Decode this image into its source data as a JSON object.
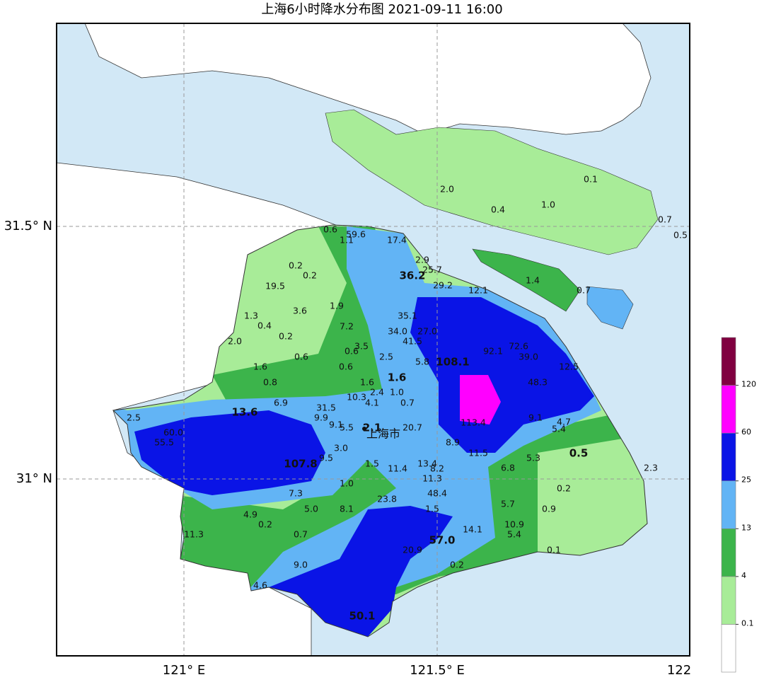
{
  "title": "上海6小时降水分布图 2021-09-11 16:00",
  "axes": {
    "y_labels": [
      "31.5° N",
      "31° N"
    ],
    "x_labels": [
      "121° E",
      "121.5° E",
      "122"
    ]
  },
  "city_label": "上海市",
  "stations": [
    "0.1",
    "2.0",
    "0.4",
    "1.0",
    "0.7",
    "0.5",
    "0.6",
    "59.6",
    "1.1",
    "17.4",
    "2.9",
    "25.7",
    "36.2",
    "29.2",
    "12.1",
    "1.4",
    "0.7",
    "0.2",
    "0.2",
    "19.5",
    "3.6",
    "1.9",
    "1.3",
    "0.4",
    "0.2",
    "7.2",
    "35.1",
    "34.0",
    "27.0",
    "41.5",
    "2.0",
    "3.5",
    "0.6",
    "0.6",
    "2.5",
    "1.6",
    "0.6",
    "5.8",
    "108.1",
    "1.6",
    "0.8",
    "1.6",
    "2.4",
    "1.0",
    "6.9",
    "10.3",
    "4.1",
    "0.7",
    "13.6",
    "31.5",
    "9.9",
    "2.5",
    "9.1",
    "5.5",
    "2.1",
    "20.7",
    "9.1",
    "4.7",
    "5.4",
    "3.0",
    "9.5",
    "107.8",
    "1.5",
    "11.4",
    "13.4",
    "8.2",
    "0.5",
    "5.3",
    "6.8",
    "2.3",
    "11.3",
    "1.0",
    "0.2",
    "7.3",
    "23.8",
    "48.4",
    "5.0",
    "8.1",
    "1.5",
    "5.7",
    "4.9",
    "0.9",
    "0.2",
    "0.7",
    "10.9",
    "14.1",
    "5.4",
    "57.0",
    "11.3",
    "0.1",
    "20.9",
    "9.0",
    "0.2",
    "4.6",
    "50.1",
    "113.4",
    "92.1",
    "72.6",
    "39.0",
    "48.3",
    "12.5",
    "11.5",
    "8.9",
    "60.0",
    "55.5"
  ],
  "legend": {
    "colors": [
      "#ffffff",
      "#a8ec98",
      "#3cb44b",
      "#62b4f5",
      "#0a14e6",
      "#ff00ff",
      "#800040"
    ],
    "ticks": [
      0.1,
      4,
      13,
      25,
      60,
      120
    ]
  }
}
